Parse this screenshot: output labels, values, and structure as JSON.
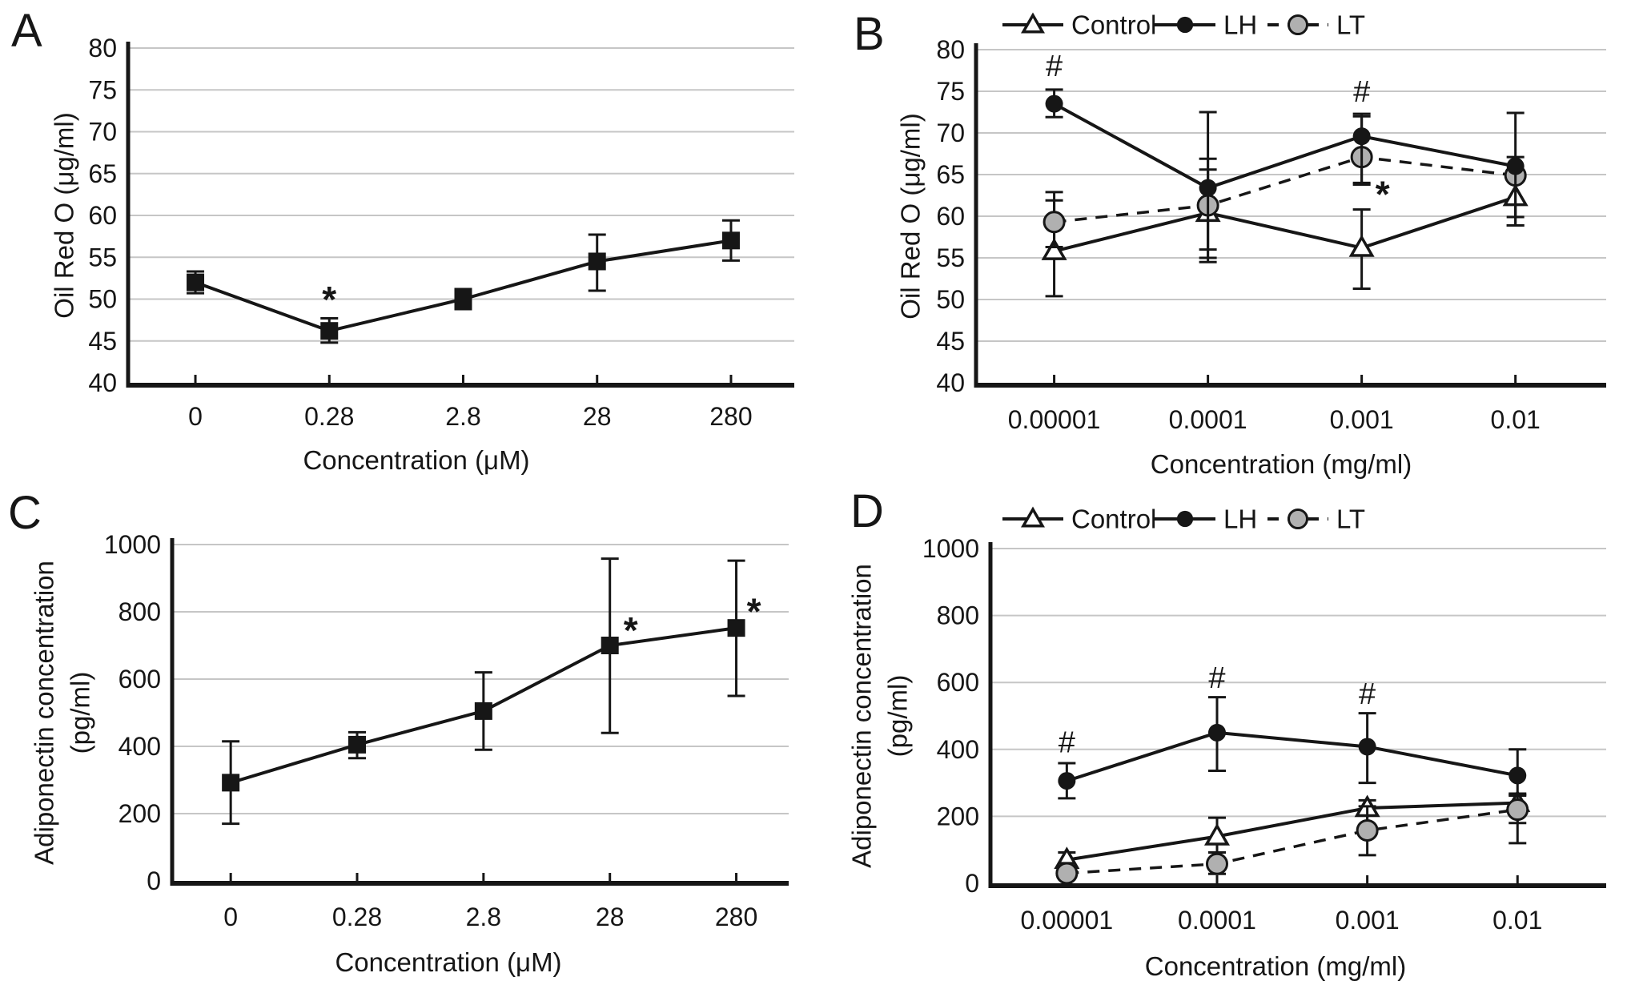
{
  "figure": {
    "background": "#ffffff",
    "panel_labels": [
      "A",
      "B",
      "C",
      "D"
    ]
  },
  "colors": {
    "line": "#161616",
    "grid": "#c6c6c6",
    "gray_fill": "#b0b0b0",
    "white_fill": "#ffffff"
  },
  "legend": {
    "items": [
      {
        "label": "Control",
        "marker": "triangle-open",
        "dashed": false
      },
      {
        "label": "LH",
        "marker": "circle-filled",
        "dashed": false
      },
      {
        "label": "LT",
        "marker": "circle-gray",
        "dashed": true
      }
    ]
  },
  "chart_data": [
    {
      "id": "A",
      "panel_label": "A",
      "type": "line",
      "title": "",
      "xlabel": "Concentration (μM)",
      "ylabel_lines": [
        "Oil Red O (μg/ml)"
      ],
      "ylim": [
        40,
        80
      ],
      "yticks": [
        40,
        45,
        50,
        55,
        60,
        65,
        70,
        75,
        80
      ],
      "categories": [
        "0",
        "0.28",
        "2.8",
        "28",
        "280"
      ],
      "grid": true,
      "legend_position": null,
      "series": [
        {
          "name": "Oil Red O",
          "marker": "square",
          "dashed": false,
          "z": 0,
          "values": [
            52.0,
            46.2,
            50.0,
            54.5,
            57.0
          ],
          "err_lo": [
            50.7,
            44.8,
            48.8,
            51.0,
            54.6
          ],
          "err_hi": [
            53.3,
            47.7,
            51.2,
            57.7,
            59.4
          ]
        }
      ],
      "annotations": [
        {
          "text": "*",
          "index": 1,
          "y": 51.3,
          "dx": 0
        }
      ]
    },
    {
      "id": "B",
      "panel_label": "B",
      "type": "line",
      "title": "",
      "xlabel": "Concentration (mg/ml)",
      "ylabel_lines": [
        "Oil Red O (μg/ml)"
      ],
      "ylim": [
        40,
        80
      ],
      "yticks": [
        40,
        45,
        50,
        55,
        60,
        65,
        70,
        75,
        80
      ],
      "categories": [
        "0.00001",
        "0.0001",
        "0.001",
        "0.01"
      ],
      "grid": true,
      "legend_position": "top",
      "series": [
        {
          "name": "Control",
          "marker": "triangle-open",
          "dashed": false,
          "z": 0,
          "values": [
            55.8,
            60.4,
            56.2,
            62.3
          ],
          "err_lo": [
            50.4,
            56.0,
            51.3,
            58.9
          ],
          "err_hi": [
            61.9,
            65.6,
            60.8,
            65.5
          ]
        },
        {
          "name": "LH",
          "marker": "circle-filled",
          "dashed": false,
          "z": 2,
          "values": [
            73.5,
            63.4,
            69.6,
            66.0
          ],
          "err_lo": [
            71.9,
            54.5,
            64.0,
            59.9
          ],
          "err_hi": [
            75.2,
            72.5,
            72.3,
            72.4
          ]
        },
        {
          "name": "LT",
          "marker": "circle-gray",
          "dashed": true,
          "z": 1,
          "values": [
            59.3,
            61.3,
            67.1,
            64.9
          ],
          "err_lo": [
            56.3,
            55.0,
            63.8,
            58.9
          ],
          "err_hi": [
            62.9,
            66.9,
            72.0,
            67.1
          ]
        }
      ],
      "annotations": [
        {
          "text": "#",
          "index": 0,
          "y": 78.0,
          "dx": 0
        },
        {
          "text": "#",
          "index": 2,
          "y": 74.9,
          "dx": 0
        },
        {
          "text": "*",
          "index": 2,
          "y": 64.0,
          "dx": 26
        }
      ]
    },
    {
      "id": "C",
      "panel_label": "C",
      "type": "line",
      "title": "",
      "xlabel": "Concentration (μM)",
      "ylabel_lines": [
        "Adiponectin concentration",
        "(pg/ml)"
      ],
      "ylim": [
        0,
        1000
      ],
      "yticks": [
        0,
        200,
        400,
        600,
        800,
        1000
      ],
      "categories": [
        "0",
        "0.28",
        "2.8",
        "28",
        "280"
      ],
      "grid": true,
      "legend_position": null,
      "series": [
        {
          "name": "Adiponectin",
          "marker": "square",
          "dashed": false,
          "z": 0,
          "values": [
            292,
            405,
            505,
            700,
            752
          ],
          "err_lo": [
            170,
            365,
            390,
            440,
            550
          ],
          "err_hi": [
            415,
            442,
            620,
            958,
            952
          ]
        }
      ],
      "annotations": [
        {
          "text": "*",
          "index": 3,
          "y": 779,
          "dx": 26
        },
        {
          "text": "*",
          "index": 4,
          "y": 835,
          "dx": 22
        }
      ]
    },
    {
      "id": "D",
      "panel_label": "D",
      "type": "line",
      "title": "",
      "xlabel": "Concentration (mg/ml)",
      "ylabel_lines": [
        "Adiponectin concentration",
        "(pg/ml)"
      ],
      "ylim": [
        0,
        1000
      ],
      "yticks": [
        0,
        200,
        400,
        600,
        800,
        1000
      ],
      "categories": [
        "0.00001",
        "0.0001",
        "0.001",
        "0.01"
      ],
      "grid": true,
      "legend_position": "top",
      "series": [
        {
          "name": "Control",
          "marker": "triangle-open",
          "dashed": false,
          "z": 0,
          "values": [
            70,
            140,
            225,
            240
          ],
          "err_lo": [
            45,
            92,
            155,
            180
          ],
          "err_hi": [
            92,
            196,
            248,
            265
          ]
        },
        {
          "name": "LH",
          "marker": "circle-filled",
          "dashed": false,
          "z": 2,
          "values": [
            306,
            450,
            408,
            322
          ],
          "err_lo": [
            254,
            336,
            300,
            262
          ],
          "err_hi": [
            359,
            556,
            508,
            400
          ]
        },
        {
          "name": "LT",
          "marker": "circle-gray",
          "dashed": true,
          "z": 1,
          "values": [
            30,
            58,
            158,
            220
          ],
          "err_lo": [
            12,
            28,
            84,
            120
          ],
          "err_hi": [
            60,
            92,
            230,
            268
          ]
        }
      ],
      "annotations": [
        {
          "text": "#",
          "index": 0,
          "y": 420,
          "dx": 0
        },
        {
          "text": "#",
          "index": 1,
          "y": 612,
          "dx": 0
        },
        {
          "text": "#",
          "index": 2,
          "y": 565,
          "dx": 0
        }
      ]
    }
  ]
}
